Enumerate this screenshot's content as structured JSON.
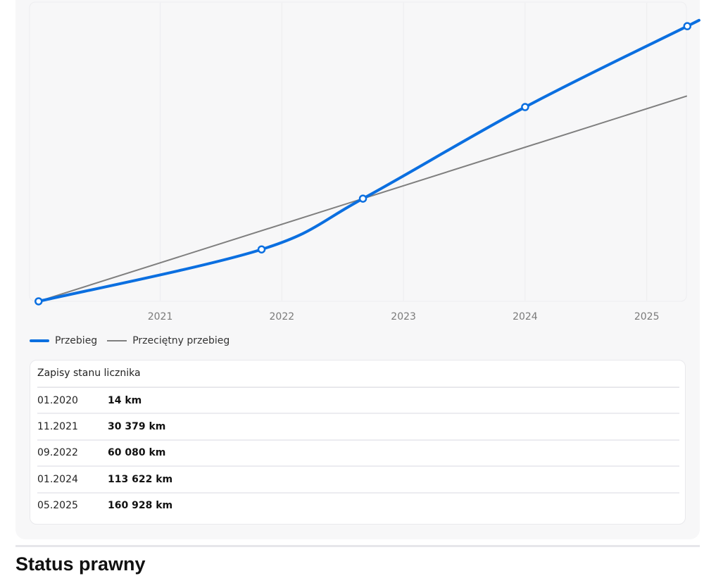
{
  "chart_data": {
    "type": "line",
    "x_ticks": [
      "2021",
      "2022",
      "2023",
      "2024",
      "2025"
    ],
    "x_range": [
      "2020-01",
      "2025-05"
    ],
    "y_range": [
      0,
      175000
    ],
    "grid": true,
    "legend_position": "bottom-left",
    "series": [
      {
        "name": "Przebieg",
        "color": "#0b6fe0",
        "points": [
          {
            "x": "2020-01",
            "y": 14
          },
          {
            "x": "2021-11",
            "y": 30379
          },
          {
            "x": "2022-09",
            "y": 60080
          },
          {
            "x": "2024-01",
            "y": 113622
          },
          {
            "x": "2025-05",
            "y": 160928
          }
        ]
      },
      {
        "name": "Przeciętny przebieg",
        "color": "#7f7f7f",
        "points": [
          {
            "x": "2020-01",
            "y": 14
          },
          {
            "x": "2025-05",
            "y": 120000
          }
        ]
      }
    ]
  },
  "legend": {
    "main_label": "Przebieg",
    "avg_label": "Przeciętny przebieg",
    "main_color": "#0b6fe0",
    "avg_color": "#7f7f7f"
  },
  "records": {
    "title": "Zapisy stanu licznika",
    "rows": [
      {
        "date": "01.2020",
        "value": "14 km"
      },
      {
        "date": "11.2021",
        "value": "30 379 km"
      },
      {
        "date": "09.2022",
        "value": "60 080 km"
      },
      {
        "date": "01.2024",
        "value": "113 622 km"
      },
      {
        "date": "05.2025",
        "value": "160 928 km"
      }
    ]
  },
  "section": {
    "title": "Status prawny"
  }
}
